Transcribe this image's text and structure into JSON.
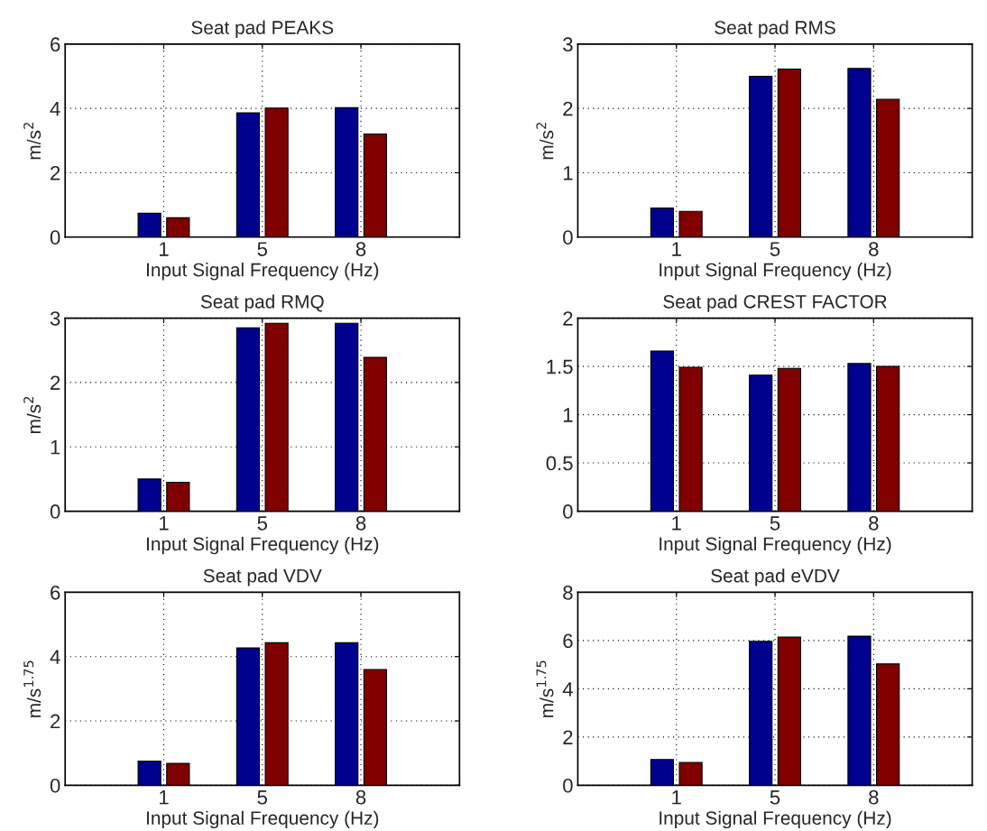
{
  "chart_data": [
    {
      "type": "bar",
      "title": "Seat pad PEAKS",
      "xlabel": "Input Signal Frequency (Hz)",
      "ylabel": "m/s$^{2}$",
      "categories": [
        "1",
        "5",
        "8"
      ],
      "ylim": [
        0,
        6
      ],
      "yticks": [
        0,
        2,
        4,
        6
      ],
      "grid": true,
      "series": [
        {
          "color": "#00008f",
          "values": [
            0.74,
            3.86,
            4.02
          ]
        },
        {
          "color": "#800000",
          "values": [
            0.6,
            4.01,
            3.2
          ]
        }
      ]
    },
    {
      "type": "bar",
      "title": "Seat pad RMS",
      "xlabel": "Input Signal Frequency (Hz)",
      "ylabel": "m/s$^{2}$",
      "categories": [
        "1",
        "5",
        "8"
      ],
      "ylim": [
        0,
        3
      ],
      "yticks": [
        0,
        1,
        2,
        3
      ],
      "grid": true,
      "series": [
        {
          "color": "#00008f",
          "values": [
            0.45,
            2.5,
            2.62
          ]
        },
        {
          "color": "#800000",
          "values": [
            0.4,
            2.61,
            2.14
          ]
        }
      ]
    },
    {
      "type": "bar",
      "title": "Seat pad RMQ",
      "xlabel": "Input Signal Frequency (Hz)",
      "ylabel": "m/s$^{2}$",
      "categories": [
        "1",
        "5",
        "8"
      ],
      "ylim": [
        0,
        3
      ],
      "yticks": [
        0,
        1,
        2,
        3
      ],
      "grid": true,
      "series": [
        {
          "color": "#00008f",
          "values": [
            0.5,
            2.85,
            2.92
          ]
        },
        {
          "color": "#800000",
          "values": [
            0.45,
            2.92,
            2.39
          ]
        }
      ]
    },
    {
      "type": "bar",
      "title": "Seat pad CREST FACTOR",
      "xlabel": "Input Signal Frequency (Hz)",
      "categories": [
        "1",
        "5",
        "8"
      ],
      "ylim": [
        0,
        2
      ],
      "yticks": [
        0,
        0.5,
        1,
        1.5,
        2
      ],
      "grid": true,
      "series": [
        {
          "color": "#00008f",
          "values": [
            1.66,
            1.41,
            1.53
          ]
        },
        {
          "color": "#800000",
          "values": [
            1.49,
            1.48,
            1.5
          ]
        }
      ]
    },
    {
      "type": "bar",
      "title": "Seat pad VDV",
      "xlabel": "Input Signal Frequency (Hz)",
      "ylabel": "m/s$^{1.75}$",
      "categories": [
        "1",
        "5",
        "8"
      ],
      "ylim": [
        0,
        6
      ],
      "yticks": [
        0,
        2,
        4,
        6
      ],
      "grid": true,
      "series": [
        {
          "color": "#00008f",
          "values": [
            0.75,
            4.27,
            4.43
          ]
        },
        {
          "color": "#800000",
          "values": [
            0.68,
            4.43,
            3.6
          ]
        }
      ]
    },
    {
      "type": "bar",
      "title": "Seat pad eVDV",
      "xlabel": "Input Signal Frequency (Hz)",
      "ylabel": "m/s$^{1.75}$",
      "categories": [
        "1",
        "5",
        "8"
      ],
      "ylim": [
        0,
        8
      ],
      "yticks": [
        0,
        2,
        4,
        6,
        8
      ],
      "grid": true,
      "series": [
        {
          "color": "#00008f",
          "values": [
            1.07,
            5.97,
            6.18
          ]
        },
        {
          "color": "#800000",
          "values": [
            0.95,
            6.14,
            5.03
          ]
        }
      ]
    }
  ]
}
